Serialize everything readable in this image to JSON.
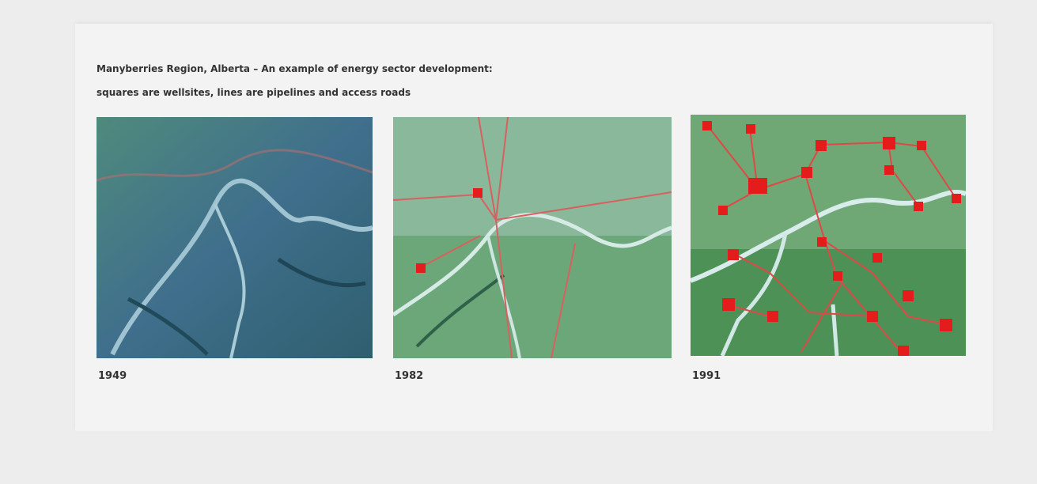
{
  "figure": {
    "caption_lines": [
      "Manyberries Region, Alberta – An example of energy sector development:",
      "squares are wellsites, lines are pipelines and access roads"
    ],
    "panels": [
      {
        "label": "1949"
      },
      {
        "label": "1982"
      },
      {
        "label": "1991"
      }
    ]
  }
}
